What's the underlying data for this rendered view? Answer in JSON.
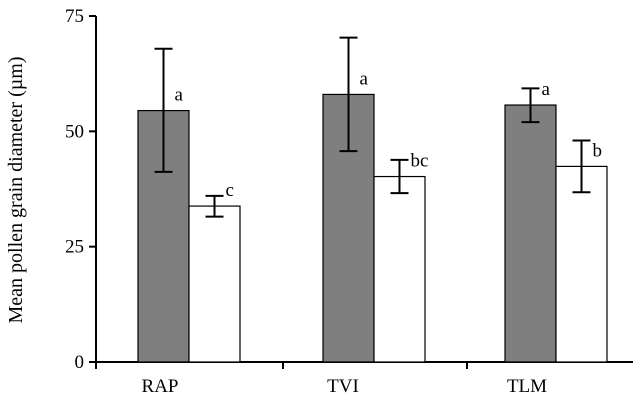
{
  "chart_data": {
    "type": "bar",
    "title": "",
    "xlabel": "",
    "ylabel": "Mean pollen grain diameter (µm)",
    "ylim": [
      0,
      75
    ],
    "yticks": [
      0,
      25,
      50,
      75
    ],
    "grid": false,
    "legend": "none",
    "categories": [
      "RAP",
      "TVI",
      "TLM"
    ],
    "series": [
      {
        "color": "#7f7f7f",
        "values": [
          54.5,
          58.0,
          55.7
        ],
        "error_low": [
          41.2,
          45.7,
          52.0
        ],
        "error_high": [
          67.9,
          70.3,
          59.3
        ],
        "labels": [
          "a",
          "a",
          "a"
        ]
      },
      {
        "color": "#ffffff",
        "values": [
          33.8,
          40.2,
          42.4
        ],
        "error_low": [
          31.5,
          36.6,
          36.8
        ],
        "error_high": [
          36.0,
          43.8,
          48.0
        ],
        "labels": [
          "c",
          "bc",
          "b"
        ]
      }
    ]
  }
}
